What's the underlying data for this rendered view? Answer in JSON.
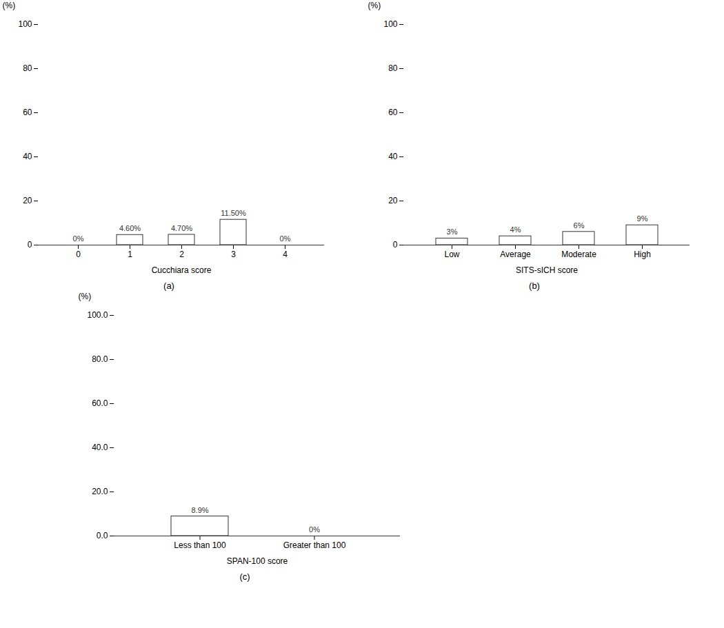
{
  "chart_data": [
    {
      "type": "bar",
      "subtitle": "(a)",
      "xlabel": "Cucchiara score",
      "ylabel": "(%)",
      "categories": [
        "0",
        "1",
        "2",
        "3",
        "4"
      ],
      "values": [
        0,
        4.6,
        4.7,
        11.5,
        0
      ],
      "value_labels": [
        "0%",
        "4.60%",
        "4.70%",
        "11.50%",
        "0%"
      ],
      "data_labels": true,
      "color": "white",
      "ylim": [
        0,
        100
      ],
      "yticks": [
        0,
        20,
        40,
        60,
        80,
        100
      ]
    },
    {
      "type": "bar",
      "subtitle": "(b)",
      "xlabel": "SITS-sICH score",
      "ylabel": "(%)",
      "categories": [
        "Low",
        "Average",
        "Moderate",
        "High"
      ],
      "values": [
        3,
        4,
        6,
        9
      ],
      "value_labels": [
        "3%",
        "4%",
        "6%",
        "9%"
      ],
      "data_labels": true,
      "color": "white",
      "ylim": [
        0,
        100
      ],
      "yticks": [
        0,
        20,
        40,
        60,
        80,
        100
      ]
    },
    {
      "type": "bar",
      "subtitle": "(c)",
      "xlabel": "SPAN-100 score",
      "ylabel": "(%)",
      "categories": [
        "Less than 100",
        "Greater than 100"
      ],
      "values": [
        8.9,
        0
      ],
      "value_labels": [
        "8.9%",
        "0%"
      ],
      "data_labels": true,
      "color": "white",
      "ylim": [
        0,
        100
      ],
      "yticks": [
        {
          "value": 0,
          "label": "0.0"
        },
        {
          "value": 20,
          "label": "20.0"
        },
        {
          "value": 40,
          "label": "40.0"
        },
        {
          "value": 60,
          "label": "60.0"
        },
        {
          "value": 80,
          "label": "80.0"
        },
        {
          "value": 100,
          "label": "100.0"
        }
      ]
    }
  ]
}
